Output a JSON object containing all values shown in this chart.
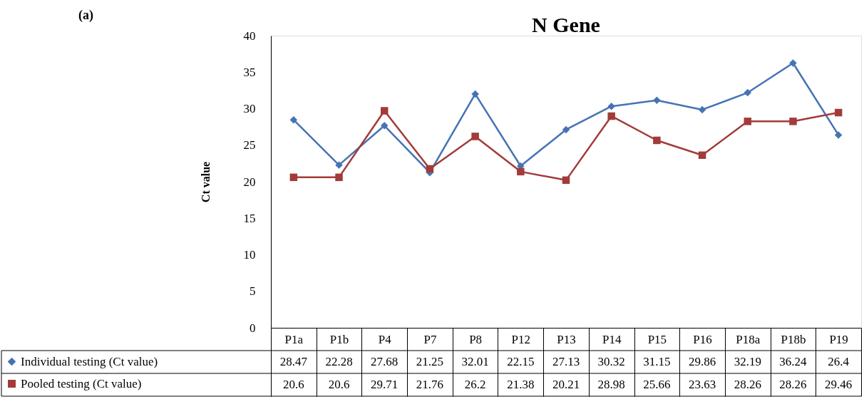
{
  "chart_data": {
    "type": "line",
    "title": "N Gene",
    "ylabel": "Ct value",
    "annotations": [
      "(a)"
    ],
    "categories": [
      "P1a",
      "P1b",
      "P4",
      "P7",
      "P8",
      "P12",
      "P13",
      "P14",
      "P15",
      "P16",
      "P18a",
      "P18b",
      "P19"
    ],
    "series": [
      {
        "name": "Individual testing (Ct value)",
        "color": "#4573b5",
        "marker": "diamond",
        "values": [
          28.47,
          22.28,
          27.68,
          21.25,
          32.01,
          22.15,
          27.13,
          30.32,
          31.15,
          29.86,
          32.19,
          36.24,
          26.4
        ]
      },
      {
        "name": "Pooled testing (Ct value)",
        "color": "#a23b3a",
        "marker": "square",
        "values": [
          20.6,
          20.6,
          29.71,
          21.76,
          26.2,
          21.38,
          20.21,
          28.98,
          25.66,
          23.63,
          28.26,
          28.26,
          29.46
        ]
      }
    ],
    "ylim": [
      0,
      40
    ],
    "yticks": [
      0,
      5,
      10,
      15,
      20,
      25,
      30,
      35,
      40
    ],
    "grid": false,
    "legend": "bottom left",
    "data_labels": true,
    "line_style": "solid"
  }
}
